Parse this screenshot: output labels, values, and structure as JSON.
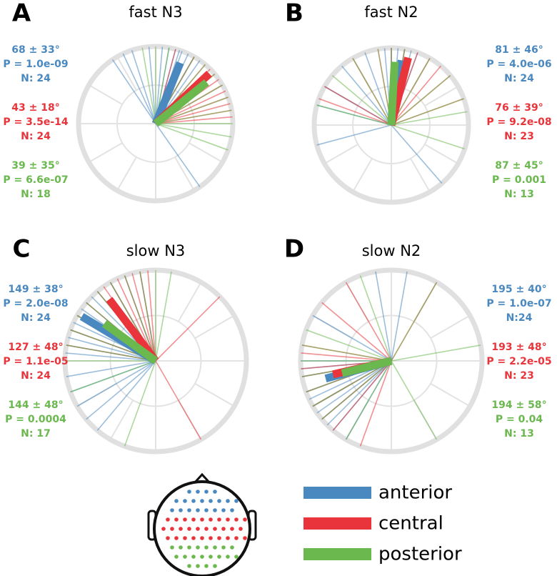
{
  "chart_data": [
    {
      "type": "polar",
      "panel": "A",
      "title": "fast N3",
      "rlim": [
        0,
        1
      ],
      "thetaticks": [
        0,
        30,
        60,
        90,
        120,
        150,
        180,
        210,
        240,
        270,
        300,
        330
      ],
      "grid": true,
      "stats_side": "left",
      "series": [
        {
          "name": "anterior",
          "color": "#4a88c0",
          "mean": 68,
          "length": 0.85,
          "mean_label": "68 ± 33°",
          "p_label": "P = 1.0e-09",
          "n_label": "N: 24",
          "angles": [
            124,
            115,
            108,
            95,
            85,
            80,
            75,
            72,
            70,
            65,
            60,
            55,
            305
          ]
        },
        {
          "name": "central",
          "color": "#e8343a",
          "mean": 43,
          "length": 0.95,
          "mean_label": "43 ± 18°",
          "p_label": "P = 3.5e-14",
          "n_label": "N: 24",
          "angles": [
            75,
            60,
            50,
            45,
            40,
            35,
            30,
            25,
            20,
            15,
            10,
            5
          ]
        },
        {
          "name": "posterior",
          "color": "#6ab84e",
          "mean": 39,
          "length": 0.85,
          "mean_label": "39 ± 35°",
          "p_label": "P = 6.6e-07",
          "n_label": "N: 18",
          "angles": [
            100,
            90,
            80,
            60,
            50,
            40,
            30,
            20,
            10,
            0,
            350,
            340
          ]
        }
      ]
    },
    {
      "type": "polar",
      "panel": "B",
      "title": "fast N2",
      "rlim": [
        0,
        1
      ],
      "thetaticks": [
        0,
        30,
        60,
        90,
        120,
        150,
        180,
        210,
        240,
        270,
        300,
        330
      ],
      "grid": true,
      "stats_side": "right",
      "series": [
        {
          "name": "anterior",
          "color": "#4a88c0",
          "mean": 81,
          "length": 0.85,
          "mean_label": "81 ± 46°",
          "p_label": "P = 4.0e-06",
          "n_label": "N: 24",
          "angles": [
            95,
            90,
            85,
            80,
            75,
            70,
            110,
            130,
            150,
            165,
            195,
            311
          ]
        },
        {
          "name": "central",
          "color": "#e8343a",
          "mean": 76,
          "length": 0.9,
          "mean_label": "76 ± 39°",
          "p_label": "P = 9.2e-08",
          "n_label": "N: 23",
          "angles": [
            120,
            100,
            90,
            80,
            70,
            60,
            50,
            40,
            150,
            160,
            20
          ]
        },
        {
          "name": "posterior",
          "color": "#6ab84e",
          "mean": 87,
          "length": 0.82,
          "mean_label": "87 ± 45°",
          "p_label": "P = 0.001",
          "n_label": "N: 13",
          "angles": [
            140,
            120,
            100,
            90,
            80,
            60,
            40,
            20,
            10,
            342,
            165
          ]
        }
      ]
    },
    {
      "type": "polar",
      "panel": "C",
      "title": "slow N3",
      "rlim": [
        0,
        1
      ],
      "thetaticks": [
        0,
        30,
        60,
        90,
        120,
        150,
        180,
        210,
        240,
        270,
        300,
        330
      ],
      "grid": true,
      "stats_side": "left",
      "series": [
        {
          "name": "anterior",
          "color": "#4a88c0",
          "mean": 149,
          "length": 0.95,
          "mean_label": "149 ± 38°",
          "p_label": "P = 2.0e-08",
          "n_label": "N: 24",
          "angles": [
            175,
            170,
            165,
            160,
            155,
            150,
            145,
            140,
            135,
            130,
            120,
            110,
            100,
            190,
            200,
            210,
            220,
            230
          ]
        },
        {
          "name": "central",
          "color": "#e8343a",
          "mean": 127,
          "length": 0.85,
          "mean_label": "127 ± 48°",
          "p_label": "P = 1.1e-05",
          "n_label": "N: 24",
          "angles": [
            95,
            100,
            105,
            110,
            115,
            120,
            125,
            130,
            140,
            150,
            160,
            170,
            45,
            300
          ]
        },
        {
          "name": "posterior",
          "color": "#6ab84e",
          "mean": 144,
          "length": 0.7,
          "mean_label": "144 ± 48°",
          "p_label": "P = 0.0004",
          "n_label": "N: 17",
          "angles": [
            80,
            90,
            100,
            110,
            120,
            130,
            140,
            150,
            160,
            170,
            180,
            200,
            250
          ]
        }
      ]
    },
    {
      "type": "polar",
      "panel": "D",
      "title": "slow N2",
      "rlim": [
        0,
        1
      ],
      "thetaticks": [
        0,
        30,
        60,
        90,
        120,
        150,
        180,
        210,
        240,
        270,
        300,
        330
      ],
      "grid": true,
      "stats_side": "right",
      "series": [
        {
          "name": "anterior",
          "color": "#4a88c0",
          "mean": 195,
          "length": 0.75,
          "mean_label": "195 ± 40°",
          "p_label": "P = 1.0e-07",
          "n_label": "N:24",
          "angles": [
            180,
            185,
            190,
            200,
            205,
            210,
            215,
            220,
            225,
            230,
            240,
            100,
            80,
            150
          ]
        },
        {
          "name": "central",
          "color": "#e8343a",
          "mean": 193,
          "length": 0.66,
          "mean_label": "193 ± 48°",
          "p_label": "P = 2.2e-05",
          "n_label": "N: 23",
          "angles": [
            170,
            175,
            185,
            190,
            200,
            210,
            220,
            230,
            120,
            140,
            250,
            60
          ]
        },
        {
          "name": "posterior",
          "color": "#6ab84e",
          "mean": 194,
          "length": 0.56,
          "mean_label": "194 ± 58°",
          "p_label": "P = 0.04",
          "n_label": "N: 13",
          "angles": [
            160,
            170,
            180,
            190,
            200,
            210,
            220,
            240,
            10,
            60,
            110,
            300
          ]
        }
      ]
    }
  ]
}
